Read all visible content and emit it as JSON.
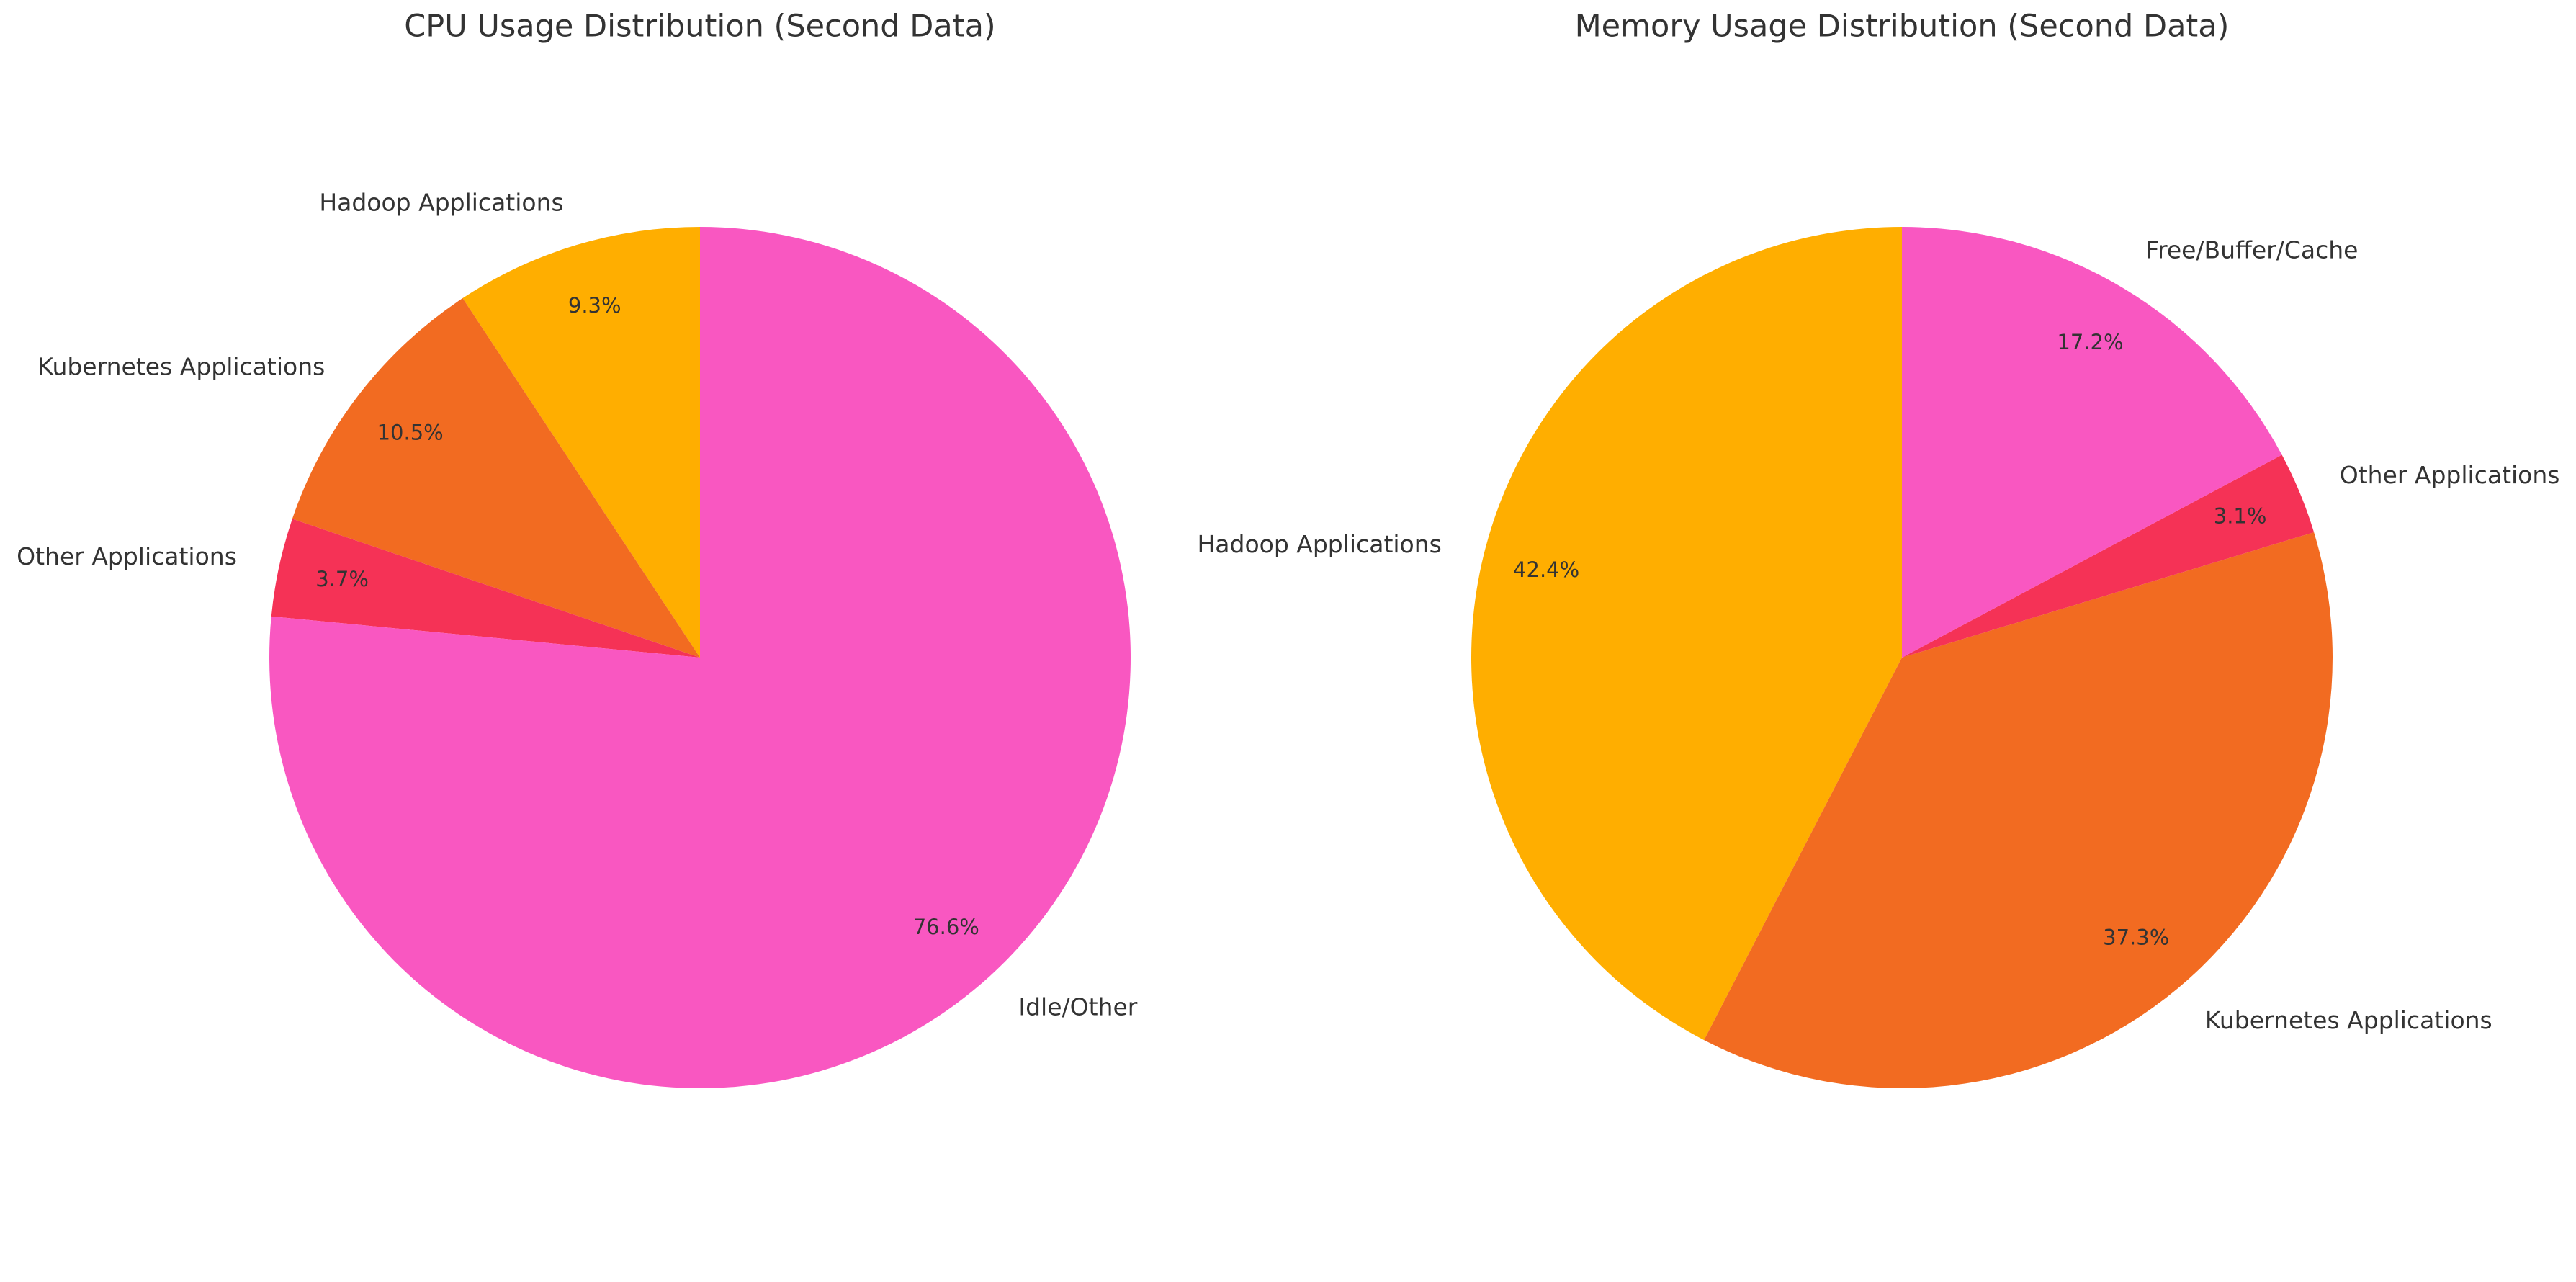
{
  "chart_data": [
    {
      "type": "pie",
      "title": "CPU Usage Distribution (Second Data)",
      "categories": [
        "Hadoop Applications",
        "Kubernetes Applications",
        "Other Applications",
        "Idle/Other"
      ],
      "values": [
        9.3,
        10.5,
        3.7,
        76.6
      ],
      "value_labels": [
        "9.3%",
        "10.5%",
        "3.7%",
        "76.6%"
      ],
      "colors": [
        "#ffae00",
        "#f26b21",
        "#f53256",
        "#f957c1"
      ]
    },
    {
      "type": "pie",
      "title": "Memory Usage Distribution (Second Data)",
      "categories": [
        "Hadoop Applications",
        "Kubernetes Applications",
        "Other Applications",
        "Free/Buffer/Cache"
      ],
      "values": [
        42.4,
        37.3,
        3.1,
        17.2
      ],
      "value_labels": [
        "42.4%",
        "37.3%",
        "3.1%",
        "17.2%"
      ],
      "colors": [
        "#ffae00",
        "#f26b21",
        "#f53256",
        "#f957c1"
      ]
    }
  ]
}
